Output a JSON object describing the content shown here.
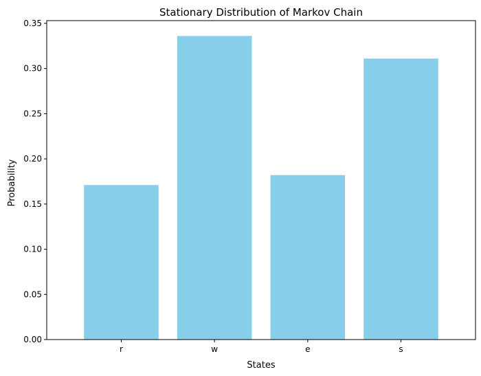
{
  "chart_data": {
    "type": "bar",
    "title": "Stationary Distribution of Markov Chain",
    "xlabel": "States",
    "ylabel": "Probability",
    "categories": [
      "r",
      "w",
      "e",
      "s"
    ],
    "values": [
      0.171,
      0.336,
      0.182,
      0.311
    ],
    "ylim": [
      0,
      0.353
    ],
    "yticks": [
      "0.00",
      "0.05",
      "0.10",
      "0.15",
      "0.20",
      "0.25",
      "0.30",
      "0.35"
    ],
    "grid": false,
    "legend": "none",
    "bar_color": "#87CEEB"
  }
}
